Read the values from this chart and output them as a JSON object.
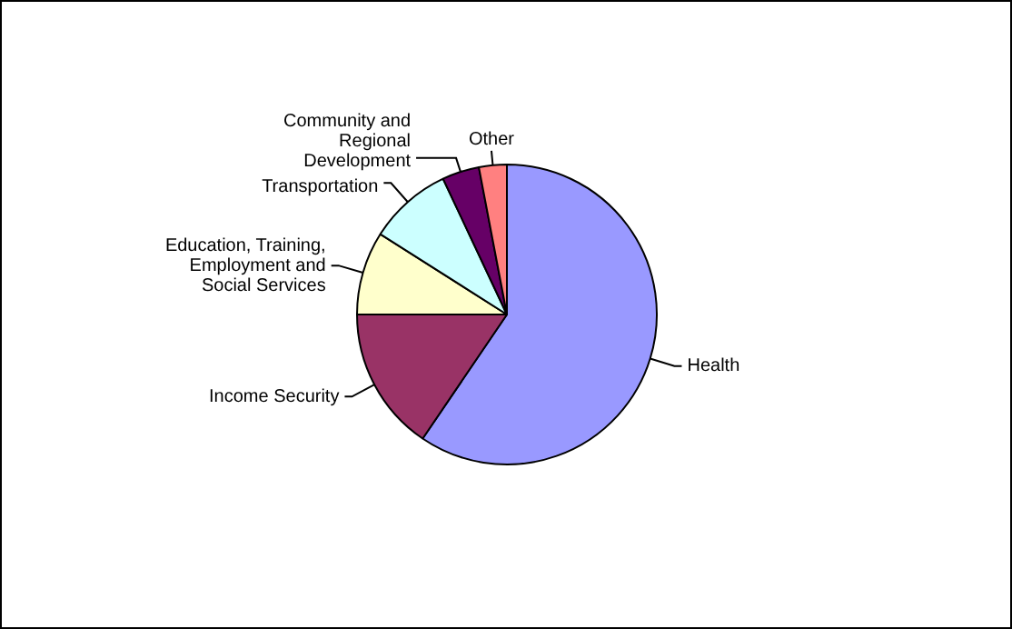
{
  "chart_data": {
    "type": "pie",
    "categories": [
      "Health",
      "Income Security",
      "Education, Training, Employment and Social Services",
      "Transportation",
      "Community and Regional Development",
      "Other"
    ],
    "values": [
      59.5,
      15.5,
      9,
      9,
      4,
      3
    ],
    "colors": [
      "#9999ff",
      "#993366",
      "#ffffcc",
      "#ccffff",
      "#660066",
      "#ff8080"
    ],
    "legend": false
  }
}
